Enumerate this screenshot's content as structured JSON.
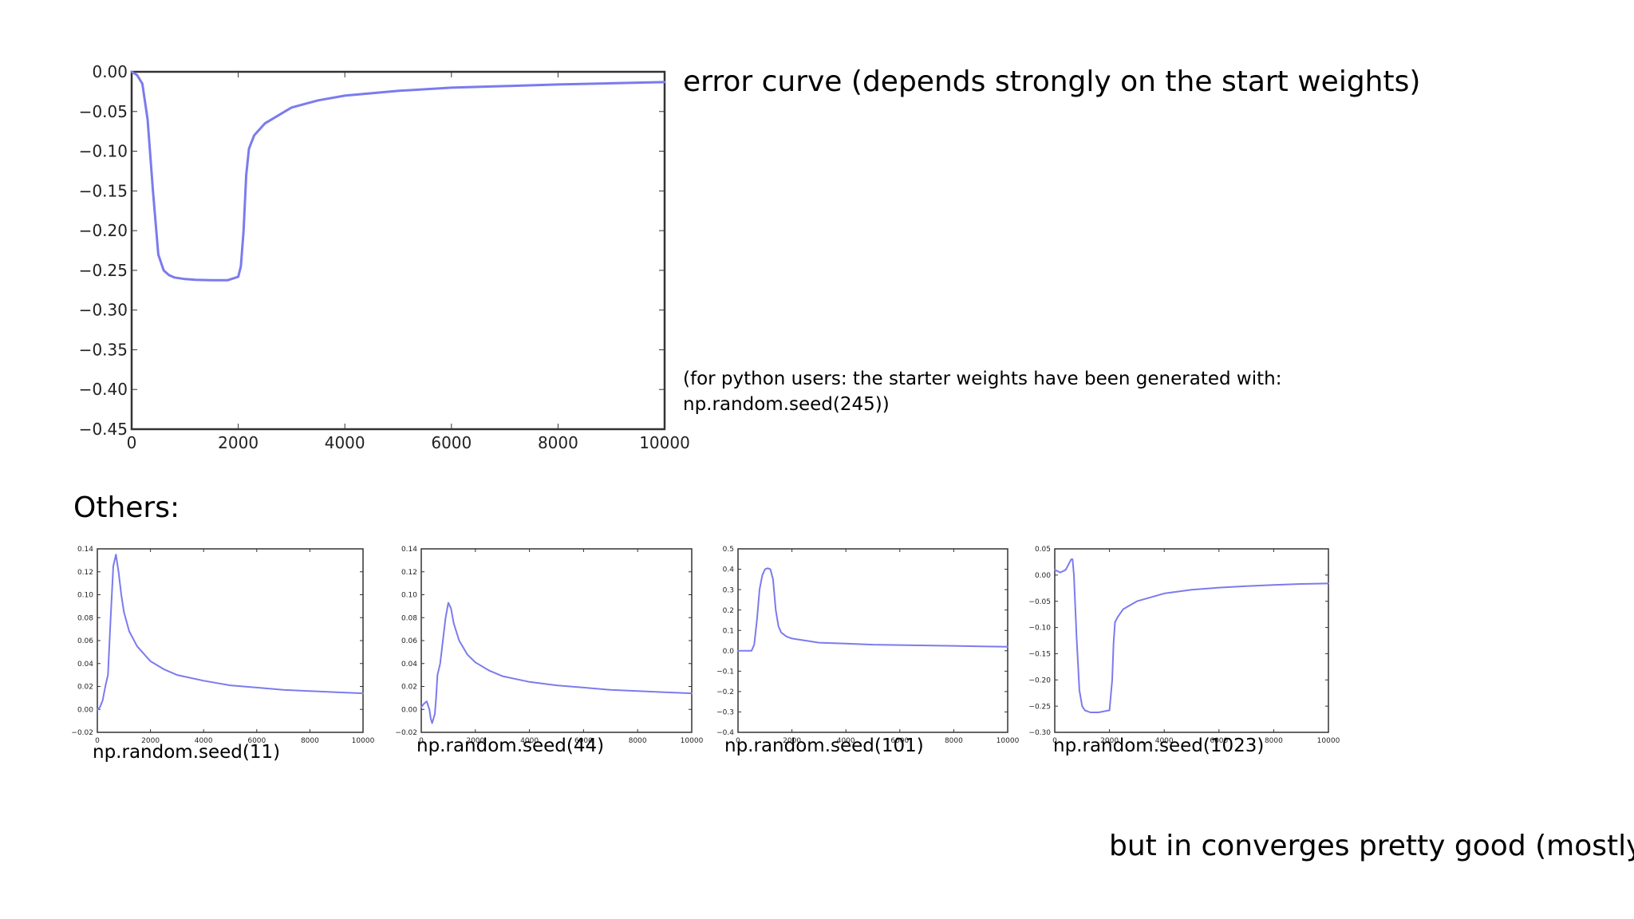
{
  "slide": {
    "title": "error curve (depends strongly on the start weights)",
    "note_line1": "(for python users: the starter weights have been generated with:",
    "note_line2": "np.random.seed(245))",
    "others_label": "Others:",
    "captions": [
      "np.random.seed(11)",
      "np.random.seed(44)",
      "np.random.seed(101)",
      "np.random.seed(1023)"
    ],
    "footer": "but in converges pretty good (mostly…)"
  },
  "colors": {
    "line": "#7b7bee",
    "axes": "#333333",
    "background": "#ffffff"
  },
  "chart_data": [
    {
      "type": "line",
      "title": "",
      "xlabel": "",
      "ylabel": "",
      "xlim": [
        0,
        10000
      ],
      "ylim": [
        -0.45,
        0.0
      ],
      "xticks": [
        0,
        2000,
        4000,
        6000,
        8000,
        10000
      ],
      "xtick_labels": [
        "0",
        "2000",
        "4000",
        "6000",
        "8000",
        "10000"
      ],
      "yticks": [
        0.0,
        -0.05,
        -0.1,
        -0.15,
        -0.2,
        -0.25,
        -0.3,
        -0.35,
        -0.4,
        -0.45
      ],
      "ytick_labels": [
        "0.00",
        "−0.05",
        "−0.10",
        "−0.15",
        "−0.20",
        "−0.25",
        "−0.30",
        "−0.35",
        "−0.40",
        "−0.45"
      ],
      "grid": false,
      "series": [
        {
          "x": [
            0,
            100,
            200,
            300,
            400,
            500,
            600,
            700,
            800,
            1000,
            1200,
            1500,
            1800,
            2000,
            2050,
            2100,
            2150,
            2200,
            2300,
            2500,
            3000,
            3500,
            4000,
            5000,
            6000,
            7000,
            8000,
            9000,
            10000
          ],
          "y": [
            0.0,
            -0.004,
            -0.015,
            -0.06,
            -0.15,
            -0.23,
            -0.25,
            -0.256,
            -0.259,
            -0.261,
            -0.262,
            -0.2625,
            -0.2625,
            -0.258,
            -0.245,
            -0.2,
            -0.13,
            -0.097,
            -0.08,
            -0.065,
            -0.045,
            -0.036,
            -0.03,
            -0.024,
            -0.02,
            -0.018,
            -0.016,
            -0.0145,
            -0.013
          ]
        }
      ]
    },
    {
      "type": "line",
      "xlim": [
        0,
        10000
      ],
      "ylim": [
        -0.02,
        0.14
      ],
      "xticks": [
        0,
        2000,
        4000,
        6000,
        8000,
        10000
      ],
      "xtick_labels": [
        "0",
        "2000",
        "4000",
        "6000",
        "8000",
        "10000"
      ],
      "yticks": [
        -0.02,
        0.0,
        0.02,
        0.04,
        0.06,
        0.08,
        0.1,
        0.12,
        0.14
      ],
      "ytick_labels": [
        "−0.02",
        "0.00",
        "0.02",
        "0.04",
        "0.06",
        "0.08",
        "0.10",
        "0.12",
        "0.14"
      ],
      "grid": false,
      "series": [
        {
          "x": [
            0,
            100,
            200,
            300,
            400,
            500,
            600,
            700,
            800,
            900,
            1000,
            1200,
            1500,
            2000,
            2500,
            3000,
            4000,
            5000,
            6000,
            7000,
            8000,
            9000,
            10000
          ],
          "y": [
            0.0,
            0.002,
            0.008,
            0.02,
            0.03,
            0.08,
            0.125,
            0.135,
            0.12,
            0.1,
            0.085,
            0.068,
            0.055,
            0.042,
            0.035,
            0.03,
            0.025,
            0.021,
            0.019,
            0.017,
            0.016,
            0.015,
            0.014
          ]
        }
      ]
    },
    {
      "type": "line",
      "xlim": [
        0,
        10000
      ],
      "ylim": [
        -0.02,
        0.14
      ],
      "xticks": [
        0,
        2000,
        4000,
        6000,
        8000,
        10000
      ],
      "xtick_labels": [
        "0",
        "2000",
        "4000",
        "6000",
        "8000",
        "10000"
      ],
      "yticks": [
        -0.02,
        0.0,
        0.02,
        0.04,
        0.06,
        0.08,
        0.1,
        0.12,
        0.14
      ],
      "ytick_labels": [
        "−0.02",
        "0.00",
        "0.02",
        "0.04",
        "0.06",
        "0.08",
        "0.10",
        "0.12",
        "0.14"
      ],
      "grid": false,
      "series": [
        {
          "x": [
            0,
            100,
            200,
            300,
            350,
            400,
            450,
            500,
            550,
            600,
            700,
            800,
            900,
            1000,
            1100,
            1200,
            1400,
            1700,
            2000,
            2500,
            3000,
            4000,
            5000,
            6000,
            7000,
            8000,
            9000,
            10000
          ],
          "y": [
            0.002,
            0.005,
            0.007,
            0.0,
            -0.008,
            -0.012,
            -0.008,
            -0.004,
            0.01,
            0.03,
            0.04,
            0.06,
            0.08,
            0.093,
            0.088,
            0.075,
            0.06,
            0.048,
            0.041,
            0.034,
            0.029,
            0.024,
            0.021,
            0.019,
            0.017,
            0.016,
            0.015,
            0.014
          ]
        }
      ]
    },
    {
      "type": "line",
      "xlim": [
        0,
        10000
      ],
      "ylim": [
        -0.4,
        0.5
      ],
      "xticks": [
        0,
        2000,
        4000,
        6000,
        8000,
        10000
      ],
      "xtick_labels": [
        "0",
        "2000",
        "4000",
        "6000",
        "8000",
        "10000"
      ],
      "yticks": [
        -0.4,
        -0.3,
        -0.2,
        -0.1,
        0.0,
        0.1,
        0.2,
        0.3,
        0.4,
        0.5
      ],
      "ytick_labels": [
        "−0.4",
        "−0.3",
        "−0.2",
        "−0.1",
        "0.0",
        "0.1",
        "0.2",
        "0.3",
        "0.4",
        "0.5"
      ],
      "grid": false,
      "series": [
        {
          "x": [
            0,
            300,
            500,
            600,
            700,
            800,
            900,
            1000,
            1100,
            1200,
            1300,
            1400,
            1500,
            1600,
            1800,
            2000,
            2500,
            3000,
            4000,
            5000,
            6000,
            7000,
            8000,
            9000,
            10000
          ],
          "y": [
            0.0,
            0.0,
            0.0,
            0.03,
            0.15,
            0.3,
            0.37,
            0.4,
            0.405,
            0.4,
            0.35,
            0.2,
            0.12,
            0.09,
            0.07,
            0.06,
            0.05,
            0.04,
            0.035,
            0.03,
            0.028,
            0.026,
            0.024,
            0.022,
            0.02
          ]
        }
      ]
    },
    {
      "type": "line",
      "xlim": [
        0,
        10000
      ],
      "ylim": [
        -0.3,
        0.05
      ],
      "xticks": [
        0,
        2000,
        4000,
        6000,
        8000,
        10000
      ],
      "xtick_labels": [
        "0",
        "2000",
        "4000",
        "6000",
        "8000",
        "10000"
      ],
      "yticks": [
        -0.3,
        -0.25,
        -0.2,
        -0.15,
        -0.1,
        -0.05,
        0.0,
        0.05
      ],
      "ytick_labels": [
        "−0.30",
        "−0.25",
        "−0.20",
        "−0.15",
        "−0.10",
        "−0.05",
        "0.00",
        "0.05"
      ],
      "grid": false,
      "series": [
        {
          "x": [
            0,
            200,
            400,
            500,
            600,
            650,
            700,
            800,
            900,
            1000,
            1100,
            1300,
            1600,
            2000,
            2100,
            2150,
            2200,
            2300,
            2500,
            3000,
            4000,
            5000,
            6000,
            7000,
            8000,
            9000,
            10000
          ],
          "y": [
            0.01,
            0.005,
            0.01,
            0.02,
            0.03,
            0.03,
            0.0,
            -0.12,
            -0.22,
            -0.25,
            -0.258,
            -0.262,
            -0.262,
            -0.258,
            -0.2,
            -0.13,
            -0.09,
            -0.08,
            -0.065,
            -0.05,
            -0.035,
            -0.028,
            -0.024,
            -0.021,
            -0.019,
            -0.017,
            -0.016
          ]
        }
      ]
    }
  ]
}
